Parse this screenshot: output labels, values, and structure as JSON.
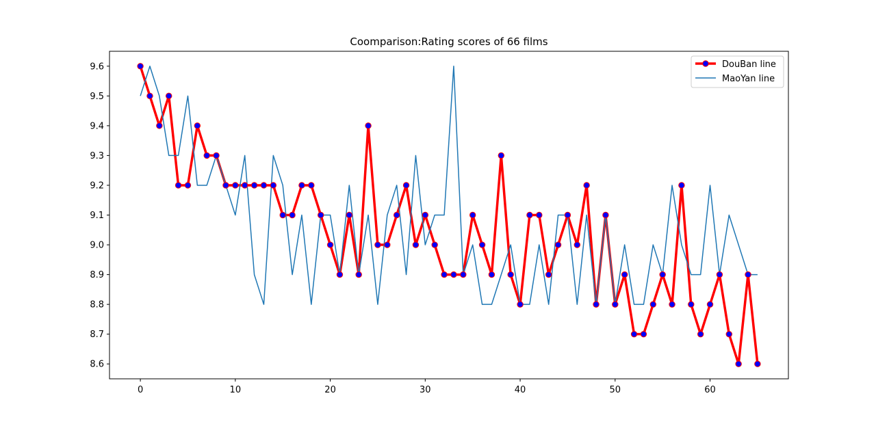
{
  "chart_data": {
    "type": "line",
    "title": "Coomparison:Rating scores of 66 films",
    "xlabel": "",
    "ylabel": "",
    "xlim": [
      -3.25,
      68.25
    ],
    "ylim": [
      8.55,
      9.65
    ],
    "xticks": [
      0,
      10,
      20,
      30,
      40,
      50,
      60
    ],
    "yticks": [
      8.6,
      8.7,
      8.8,
      8.9,
      9.0,
      9.1,
      9.2,
      9.3,
      9.4,
      9.5,
      9.6
    ],
    "grid": false,
    "legend_position": "top-right",
    "x": [
      0,
      1,
      2,
      3,
      4,
      5,
      6,
      7,
      8,
      9,
      10,
      11,
      12,
      13,
      14,
      15,
      16,
      17,
      18,
      19,
      20,
      21,
      22,
      23,
      24,
      25,
      26,
      27,
      28,
      29,
      30,
      31,
      32,
      33,
      34,
      35,
      36,
      37,
      38,
      39,
      40,
      41,
      42,
      43,
      44,
      45,
      46,
      47,
      48,
      49,
      50,
      51,
      52,
      53,
      54,
      55,
      56,
      57,
      58,
      59,
      60,
      61,
      62,
      63,
      64,
      65
    ],
    "series": [
      {
        "name": "DouBan line",
        "color": "#ff0000",
        "marker_color": "#0000ff",
        "values": [
          9.6,
          9.5,
          9.4,
          9.5,
          9.2,
          9.2,
          9.4,
          9.3,
          9.3,
          9.2,
          9.2,
          9.2,
          9.2,
          9.2,
          9.2,
          9.1,
          9.1,
          9.2,
          9.2,
          9.1,
          9.0,
          8.9,
          9.1,
          8.9,
          9.4,
          9.0,
          9.0,
          9.1,
          9.2,
          9.0,
          9.1,
          9.0,
          8.9,
          8.9,
          8.9,
          9.1,
          9.0,
          8.9,
          9.3,
          8.9,
          8.8,
          9.1,
          9.1,
          8.9,
          9.0,
          9.1,
          9.0,
          9.2,
          8.8,
          9.1,
          8.8,
          8.9,
          8.7,
          8.7,
          8.8,
          8.9,
          8.8,
          9.2,
          8.8,
          8.7,
          8.8,
          8.9,
          8.7,
          8.6,
          8.9,
          8.6
        ]
      },
      {
        "name": "MaoYan line",
        "color": "#1f77b4",
        "values": [
          9.5,
          9.6,
          9.5,
          9.3,
          9.3,
          9.5,
          9.2,
          9.2,
          9.3,
          9.2,
          9.1,
          9.3,
          8.9,
          8.8,
          9.3,
          9.2,
          8.9,
          9.1,
          8.8,
          9.1,
          9.1,
          8.9,
          9.2,
          8.9,
          9.1,
          8.8,
          9.1,
          9.2,
          8.9,
          9.3,
          9.0,
          9.1,
          9.1,
          9.6,
          8.9,
          9.0,
          8.8,
          8.8,
          8.9,
          9.0,
          8.8,
          8.8,
          9.0,
          8.8,
          9.1,
          9.1,
          8.8,
          9.1,
          8.8,
          9.1,
          8.8,
          9.0,
          8.8,
          8.8,
          9.0,
          8.9,
          9.2,
          9.0,
          8.9,
          8.9,
          9.2,
          8.9,
          9.1,
          9.0,
          8.9,
          8.9
        ]
      }
    ]
  }
}
